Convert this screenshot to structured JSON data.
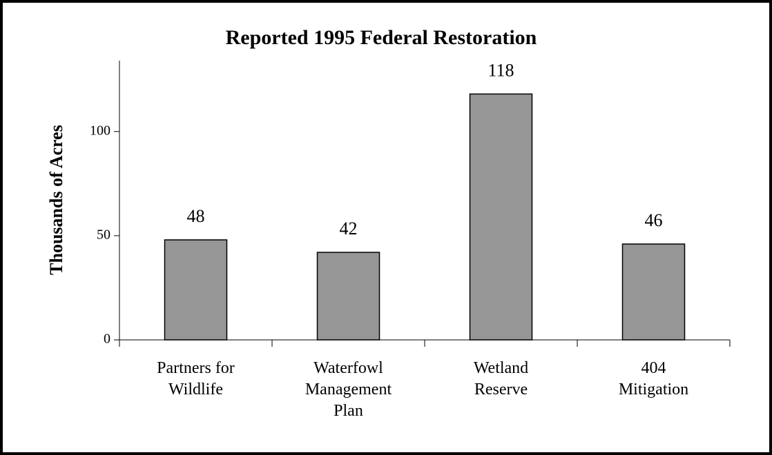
{
  "chart_data": {
    "type": "bar",
    "title": "Reported 1995 Federal Restoration",
    "y_label": "Thousands of Acres",
    "categories": [
      "Partners for\nWildlife",
      "Waterfowl\nManagement\nPlan",
      "Wetland\nReserve",
      "404\nMitigation"
    ],
    "values": [
      48,
      42,
      118,
      46
    ],
    "color": "#969696",
    "ylim": [
      0,
      134
    ],
    "yticks": [
      0,
      50,
      100
    ],
    "grid": false
  }
}
